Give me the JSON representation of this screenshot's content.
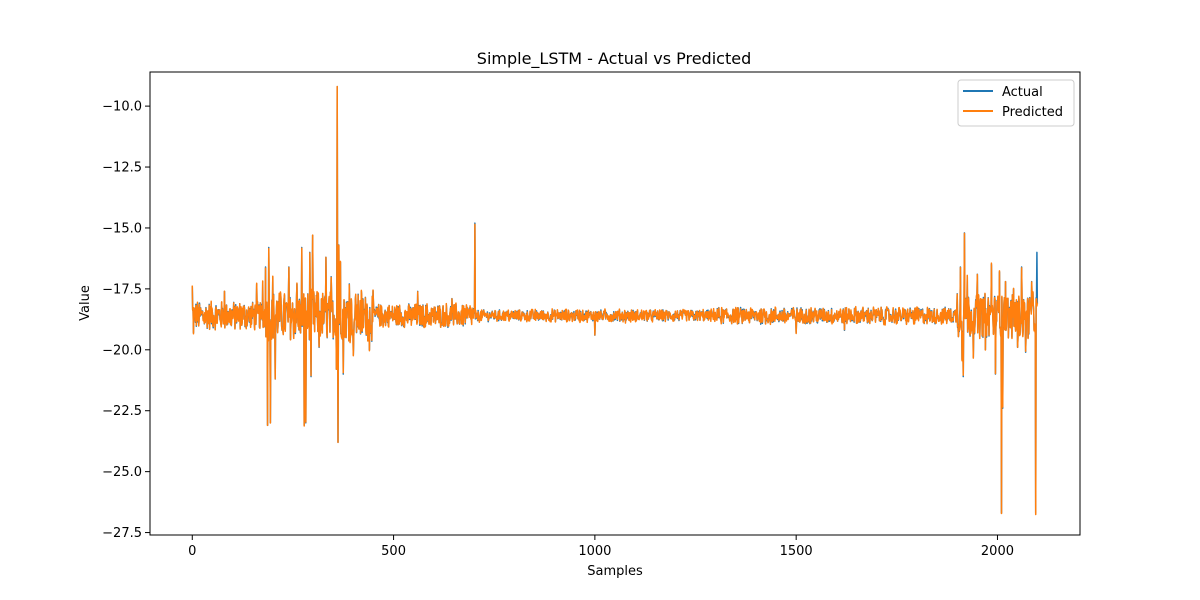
{
  "chart_data": {
    "type": "line",
    "title": "Simple_LSTM - Actual vs Predicted",
    "xlabel": "Samples",
    "ylabel": "Value",
    "xlim": [
      -105,
      2205
    ],
    "ylim": [
      -27.6,
      -8.6
    ],
    "x_ticks": [
      0,
      500,
      1000,
      1500,
      2000
    ],
    "x_tick_labels": [
      "0",
      "500",
      "1000",
      "1500",
      "2000"
    ],
    "y_ticks": [
      -10.0,
      -12.5,
      -15.0,
      -17.5,
      -20.0,
      -22.5,
      -25.0,
      -27.5
    ],
    "y_tick_labels": [
      "−10.0",
      "−12.5",
      "−15.0",
      "−17.5",
      "−20.0",
      "−22.5",
      "−25.0",
      "−27.5"
    ],
    "grid": false,
    "legend_position": "top-right",
    "n_points": 2100,
    "series": [
      {
        "name": "Actual",
        "color": "#1f77b4",
        "baseline": -18.6,
        "noise_profile": [
          {
            "x_start": 0,
            "x_end": 180,
            "amplitude": 0.55
          },
          {
            "x_start": 180,
            "x_end": 450,
            "amplitude": 0.95
          },
          {
            "x_start": 450,
            "x_end": 700,
            "amplitude": 0.45
          },
          {
            "x_start": 700,
            "x_end": 1300,
            "amplitude": 0.22
          },
          {
            "x_start": 1300,
            "x_end": 1900,
            "amplitude": 0.32
          },
          {
            "x_start": 1900,
            "x_end": 2100,
            "amplitude": 0.85
          }
        ],
        "spikes": [
          {
            "x": 0,
            "y": -17.4
          },
          {
            "x": 3,
            "y": -19.3
          },
          {
            "x": 80,
            "y": -17.6
          },
          {
            "x": 160,
            "y": -17.3
          },
          {
            "x": 175,
            "y": -17.2
          },
          {
            "x": 182,
            "y": -16.6
          },
          {
            "x": 187,
            "y": -23.1
          },
          {
            "x": 190,
            "y": -15.8
          },
          {
            "x": 194,
            "y": -23.0
          },
          {
            "x": 200,
            "y": -17.0
          },
          {
            "x": 206,
            "y": -21.2
          },
          {
            "x": 240,
            "y": -16.6
          },
          {
            "x": 260,
            "y": -17.3
          },
          {
            "x": 272,
            "y": -15.8
          },
          {
            "x": 278,
            "y": -23.1
          },
          {
            "x": 282,
            "y": -23.0
          },
          {
            "x": 292,
            "y": -16.0
          },
          {
            "x": 295,
            "y": -21.1
          },
          {
            "x": 299,
            "y": -15.3
          },
          {
            "x": 315,
            "y": -19.9
          },
          {
            "x": 332,
            "y": -16.2
          },
          {
            "x": 345,
            "y": -17.0
          },
          {
            "x": 358,
            "y": -20.8
          },
          {
            "x": 360,
            "y": -9.2
          },
          {
            "x": 362,
            "y": -23.8
          },
          {
            "x": 364,
            "y": -15.7
          },
          {
            "x": 368,
            "y": -16.4
          },
          {
            "x": 375,
            "y": -21.0
          },
          {
            "x": 390,
            "y": -17.3
          },
          {
            "x": 400,
            "y": -20.2
          },
          {
            "x": 420,
            "y": -17.6
          },
          {
            "x": 440,
            "y": -20.0
          },
          {
            "x": 560,
            "y": -17.6
          },
          {
            "x": 645,
            "y": -17.9
          },
          {
            "x": 702,
            "y": -14.8
          },
          {
            "x": 705,
            "y": -18.7
          },
          {
            "x": 1000,
            "y": -19.4
          },
          {
            "x": 1500,
            "y": -19.3
          },
          {
            "x": 1620,
            "y": -19.2
          },
          {
            "x": 1900,
            "y": -17.7
          },
          {
            "x": 1908,
            "y": -16.6
          },
          {
            "x": 1912,
            "y": -20.4
          },
          {
            "x": 1915,
            "y": -21.1
          },
          {
            "x": 1918,
            "y": -15.2
          },
          {
            "x": 1925,
            "y": -17.0
          },
          {
            "x": 1940,
            "y": -20.3
          },
          {
            "x": 1950,
            "y": -16.9
          },
          {
            "x": 1970,
            "y": -20.0
          },
          {
            "x": 1985,
            "y": -16.5
          },
          {
            "x": 1995,
            "y": -21.0
          },
          {
            "x": 2005,
            "y": -16.8
          },
          {
            "x": 2010,
            "y": -26.7
          },
          {
            "x": 2013,
            "y": -22.4
          },
          {
            "x": 2020,
            "y": -17.2
          },
          {
            "x": 2040,
            "y": -17.5
          },
          {
            "x": 2050,
            "y": -19.9
          },
          {
            "x": 2060,
            "y": -16.6
          },
          {
            "x": 2070,
            "y": -20.1
          },
          {
            "x": 2085,
            "y": -17.2
          },
          {
            "x": 2095,
            "y": -26.7
          },
          {
            "x": 2098,
            "y": -16.0
          }
        ]
      },
      {
        "name": "Predicted",
        "color": "#ff7f0e",
        "follows": "Actual",
        "overrides": [
          {
            "x": 2098,
            "y": -18.2
          }
        ]
      }
    ]
  }
}
